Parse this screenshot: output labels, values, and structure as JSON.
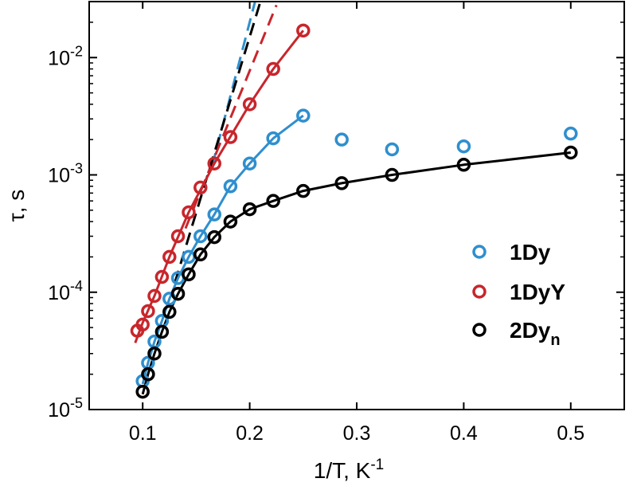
{
  "chart_data": {
    "type": "scatter",
    "xlabel": "1/T, K",
    "xlabel_sup": "-1",
    "ylabel": "τ, s",
    "xlim": [
      0.05,
      0.55
    ],
    "ylim": [
      1e-05,
      0.03
    ],
    "yscale": "log",
    "x_ticks": [
      0.1,
      0.2,
      0.3,
      0.4,
      0.5
    ],
    "x_tick_labels": [
      "0.1",
      "0.2",
      "0.3",
      "0.4",
      "0.5"
    ],
    "y_ticks": [
      1e-05,
      0.0001,
      0.001,
      0.01
    ],
    "y_tick_labels": [
      {
        "base": "10",
        "exp": "-5"
      },
      {
        "base": "10",
        "exp": "-4"
      },
      {
        "base": "10",
        "exp": "-3"
      },
      {
        "base": "10",
        "exp": "-2"
      }
    ],
    "grid": false,
    "legend_position": "right",
    "series": [
      {
        "name": "1Dy",
        "name_sub": "",
        "color": "#2f8fce",
        "points": [
          {
            "x": 0.1,
            "y": 1.75e-05
          },
          {
            "x": 0.105,
            "y": 2.5e-05
          },
          {
            "x": 0.111,
            "y": 3.8e-05
          },
          {
            "x": 0.118,
            "y": 5.7e-05
          },
          {
            "x": 0.125,
            "y": 8.8e-05
          },
          {
            "x": 0.133,
            "y": 0.000132
          },
          {
            "x": 0.143,
            "y": 0.0002
          },
          {
            "x": 0.154,
            "y": 0.0003
          },
          {
            "x": 0.167,
            "y": 0.00046
          },
          {
            "x": 0.182,
            "y": 0.0008
          },
          {
            "x": 0.2,
            "y": 0.00125
          },
          {
            "x": 0.222,
            "y": 0.00205
          },
          {
            "x": 0.25,
            "y": 0.0032
          },
          {
            "x": 0.286,
            "y": 0.002
          },
          {
            "x": 0.333,
            "y": 0.00165
          },
          {
            "x": 0.4,
            "y": 0.00175
          },
          {
            "x": 0.5,
            "y": 0.00225
          }
        ],
        "fit_line": [
          {
            "x": 0.1,
            "y": 1.65e-05
          },
          {
            "x": 0.105,
            "y": 2.5e-05
          },
          {
            "x": 0.111,
            "y": 3.8e-05
          },
          {
            "x": 0.118,
            "y": 5.7e-05
          },
          {
            "x": 0.125,
            "y": 8.8e-05
          },
          {
            "x": 0.133,
            "y": 0.000132
          },
          {
            "x": 0.143,
            "y": 0.0002
          },
          {
            "x": 0.154,
            "y": 0.0003
          },
          {
            "x": 0.167,
            "y": 0.00046
          },
          {
            "x": 0.182,
            "y": 0.0008
          },
          {
            "x": 0.2,
            "y": 0.00125
          },
          {
            "x": 0.222,
            "y": 0.00205
          },
          {
            "x": 0.25,
            "y": 0.0032
          }
        ],
        "dashed_line": [
          {
            "x": 0.165,
            "y": 0.0012
          },
          {
            "x": 0.205,
            "y": 0.03
          }
        ]
      },
      {
        "name": "1DyY",
        "name_sub": "",
        "color": "#c8262c",
        "points": [
          {
            "x": 0.095,
            "y": 4.7e-05
          },
          {
            "x": 0.1,
            "y": 5.3e-05
          },
          {
            "x": 0.105,
            "y": 6.9e-05
          },
          {
            "x": 0.111,
            "y": 9.3e-05
          },
          {
            "x": 0.118,
            "y": 0.000135
          },
          {
            "x": 0.125,
            "y": 0.0002
          },
          {
            "x": 0.133,
            "y": 0.0003
          },
          {
            "x": 0.143,
            "y": 0.00048
          },
          {
            "x": 0.154,
            "y": 0.00078
          },
          {
            "x": 0.167,
            "y": 0.00125
          },
          {
            "x": 0.182,
            "y": 0.0021
          },
          {
            "x": 0.2,
            "y": 0.004
          },
          {
            "x": 0.222,
            "y": 0.008
          },
          {
            "x": 0.25,
            "y": 0.017
          }
        ],
        "fit_line": [
          {
            "x": 0.093,
            "y": 3.7e-05
          },
          {
            "x": 0.1,
            "y": 5.5e-05
          },
          {
            "x": 0.111,
            "y": 9.3e-05
          },
          {
            "x": 0.125,
            "y": 0.0002
          },
          {
            "x": 0.143,
            "y": 0.00048
          },
          {
            "x": 0.167,
            "y": 0.00125
          },
          {
            "x": 0.2,
            "y": 0.004
          },
          {
            "x": 0.222,
            "y": 0.008
          },
          {
            "x": 0.25,
            "y": 0.017
          }
        ],
        "dashed_line": [
          {
            "x": 0.14,
            "y": 0.00035
          },
          {
            "x": 0.225,
            "y": 0.028
          }
        ]
      },
      {
        "name": "2Dy",
        "name_sub": "n",
        "color": "#000000",
        "points": [
          {
            "x": 0.1,
            "y": 1.42e-05
          },
          {
            "x": 0.105,
            "y": 2e-05
          },
          {
            "x": 0.111,
            "y": 3e-05
          },
          {
            "x": 0.118,
            "y": 4.6e-05
          },
          {
            "x": 0.125,
            "y": 6.8e-05
          },
          {
            "x": 0.133,
            "y": 9.7e-05
          },
          {
            "x": 0.143,
            "y": 0.000142
          },
          {
            "x": 0.154,
            "y": 0.00021
          },
          {
            "x": 0.167,
            "y": 0.000295
          },
          {
            "x": 0.182,
            "y": 0.0004
          },
          {
            "x": 0.2,
            "y": 0.00051
          },
          {
            "x": 0.222,
            "y": 0.0006
          },
          {
            "x": 0.25,
            "y": 0.00073
          },
          {
            "x": 0.286,
            "y": 0.00085
          },
          {
            "x": 0.333,
            "y": 0.001
          },
          {
            "x": 0.4,
            "y": 0.00122
          },
          {
            "x": 0.5,
            "y": 0.00155
          }
        ],
        "fit_line": [
          {
            "x": 0.1,
            "y": 1.35e-05
          },
          {
            "x": 0.105,
            "y": 2e-05
          },
          {
            "x": 0.111,
            "y": 3e-05
          },
          {
            "x": 0.118,
            "y": 4.6e-05
          },
          {
            "x": 0.125,
            "y": 6.8e-05
          },
          {
            "x": 0.133,
            "y": 9.7e-05
          },
          {
            "x": 0.143,
            "y": 0.000142
          },
          {
            "x": 0.154,
            "y": 0.00021
          },
          {
            "x": 0.167,
            "y": 0.000295
          },
          {
            "x": 0.182,
            "y": 0.0004
          },
          {
            "x": 0.2,
            "y": 0.00051
          },
          {
            "x": 0.222,
            "y": 0.0006
          },
          {
            "x": 0.25,
            "y": 0.00073
          },
          {
            "x": 0.286,
            "y": 0.00085
          },
          {
            "x": 0.333,
            "y": 0.001
          },
          {
            "x": 0.4,
            "y": 0.00122
          },
          {
            "x": 0.5,
            "y": 0.00155
          }
        ],
        "dashed_line": [
          {
            "x": 0.13,
            "y": 0.00012
          },
          {
            "x": 0.21,
            "y": 0.03
          }
        ]
      }
    ]
  }
}
